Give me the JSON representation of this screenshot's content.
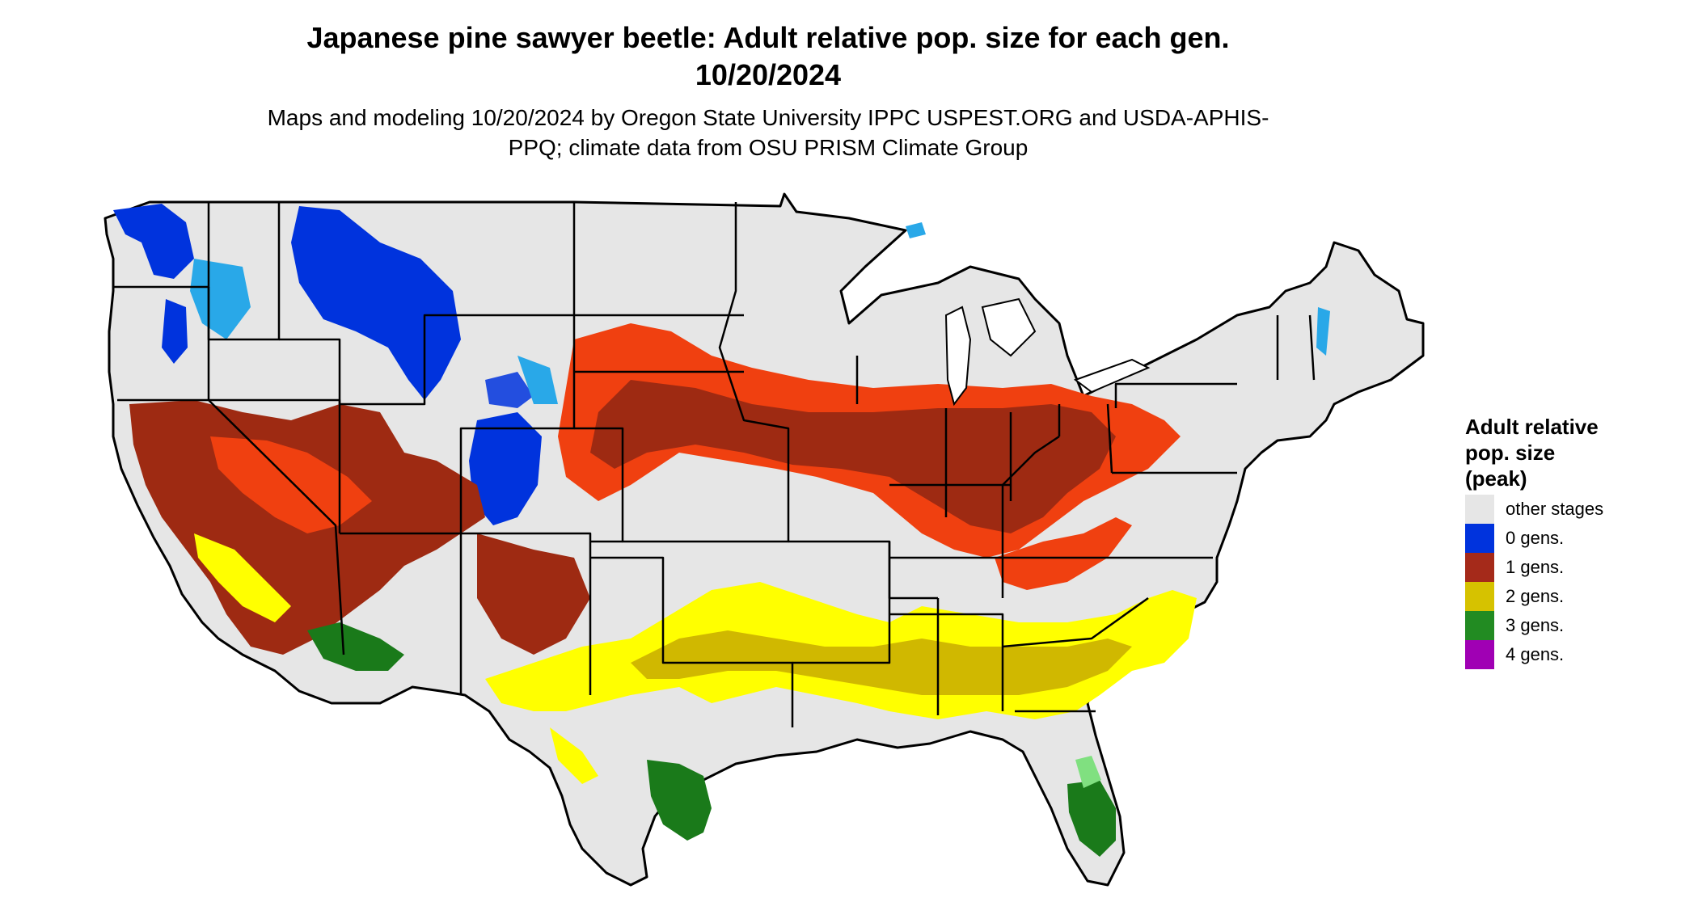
{
  "title": "Japanese pine sawyer beetle: Adult relative pop. size for each gen. 10/20/2024",
  "subtitle": "Maps and modeling 10/20/2024 by Oregon State University IPPC USPEST.ORG and USDA-APHIS-PPQ; climate data from OSU PRISM Climate Group",
  "legend": {
    "title": "Adult relative\npop. size\n(peak)",
    "items": [
      {
        "label": "other stages",
        "color": "#e6e6e6"
      },
      {
        "label": "0 gens.",
        "color": "#0033dd"
      },
      {
        "label": "1 gens.",
        "color": "#a52a1a"
      },
      {
        "label": "2 gens.",
        "color": "#d6c200"
      },
      {
        "label": "3 gens.",
        "color": "#228b22"
      },
      {
        "label": "4 gens.",
        "color": "#a000b4"
      }
    ]
  },
  "colors": {
    "land": "#e6e6e6",
    "border": "#000000",
    "zero_gen": "#0033dd",
    "zero_gen_light": "#29a8e8",
    "one_gen_dark": "#9e2a12",
    "one_gen_light": "#f04010",
    "two_gen_dark": "#d0b800",
    "two_gen_light": "#ffff00",
    "three_gen_dark": "#1a7a1a",
    "three_gen_light": "#80e080"
  }
}
